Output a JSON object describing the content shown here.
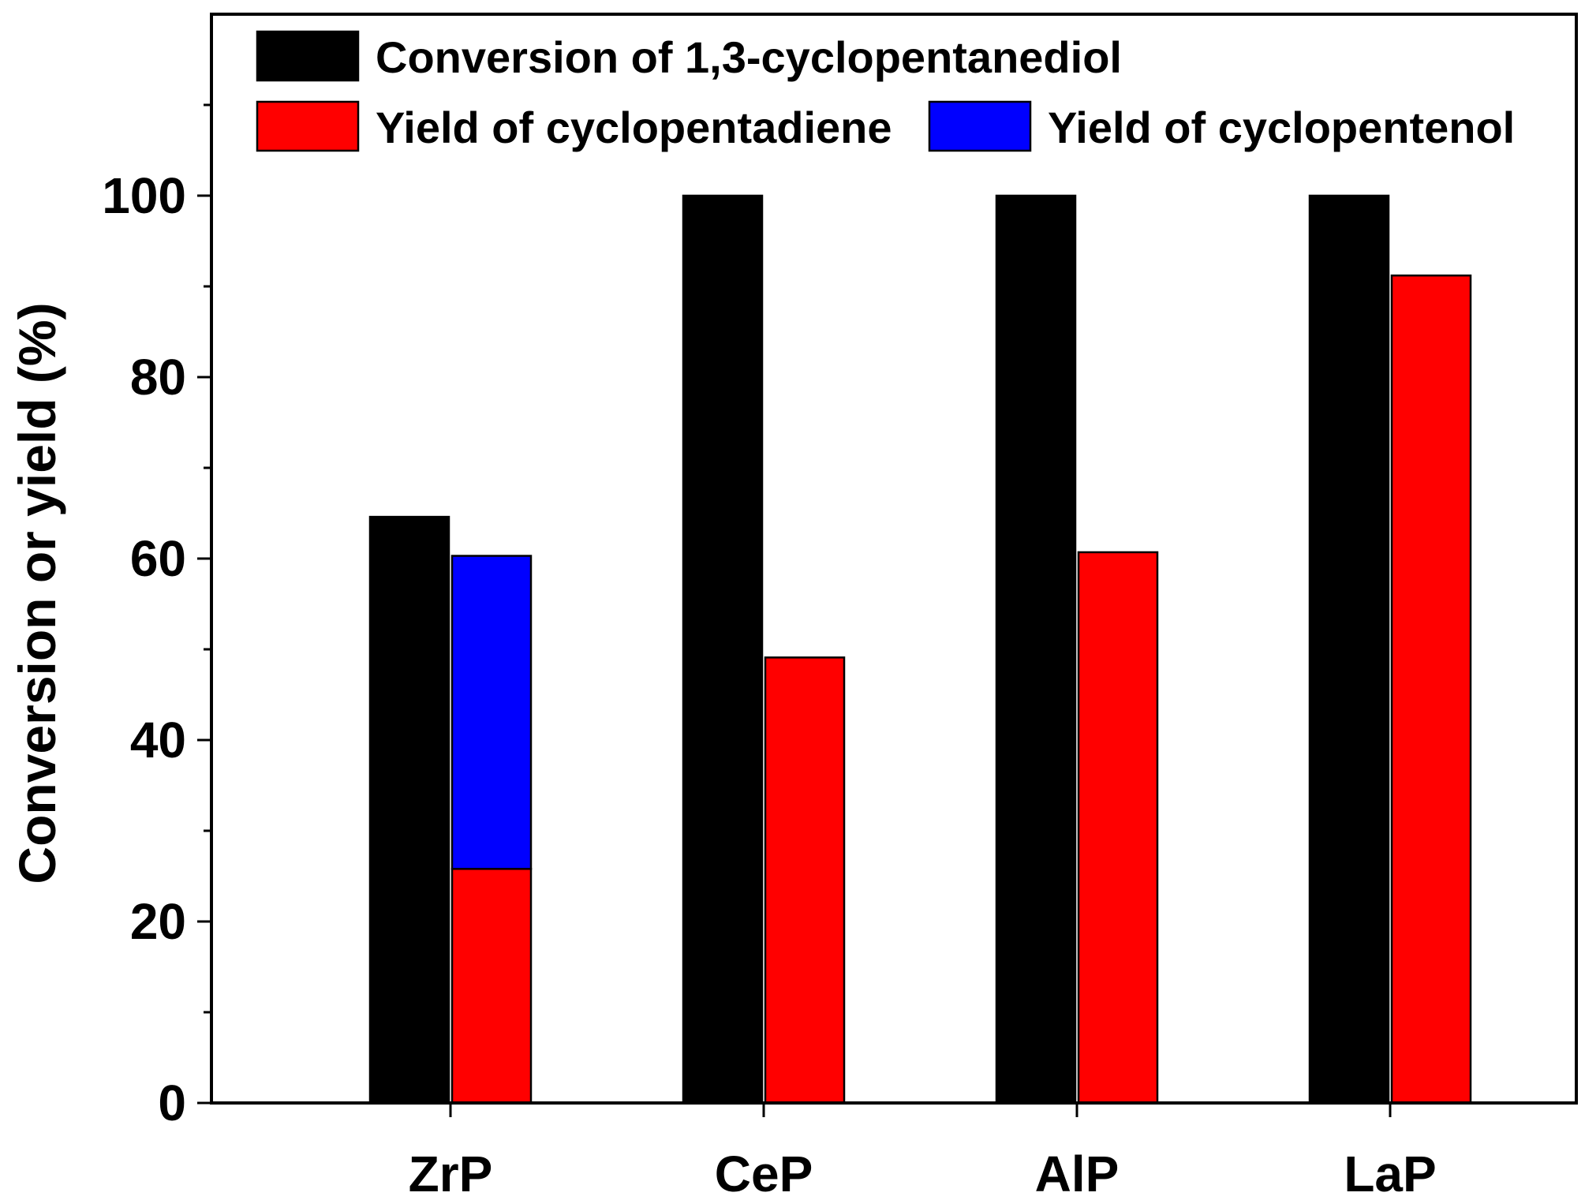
{
  "chart_data": {
    "type": "bar",
    "title": "",
    "xlabel": "",
    "ylabel": "Conversion or yield (%)",
    "ylim": [
      0,
      120
    ],
    "yticks": [
      0,
      20,
      40,
      60,
      80,
      100
    ],
    "categories": [
      "ZrP",
      "CeP",
      "AlP",
      "LaP"
    ],
    "series": [
      {
        "name": "Conversion of 1,3-cyclopentanediol",
        "color": "#000000",
        "values": [
          64.6,
          100,
          100,
          100
        ]
      },
      {
        "name": "Yield of cyclopentadiene",
        "color": "#ff0000",
        "values": [
          25.8,
          49.1,
          60.7,
          91.2
        ]
      },
      {
        "name": "Yield of cyclopentenol",
        "color": "#0000ff",
        "values": [
          34.5,
          0,
          0,
          0
        ],
        "stacked_on": "Yield of cyclopentadiene"
      }
    ],
    "legend": "top-left",
    "grid": false
  }
}
